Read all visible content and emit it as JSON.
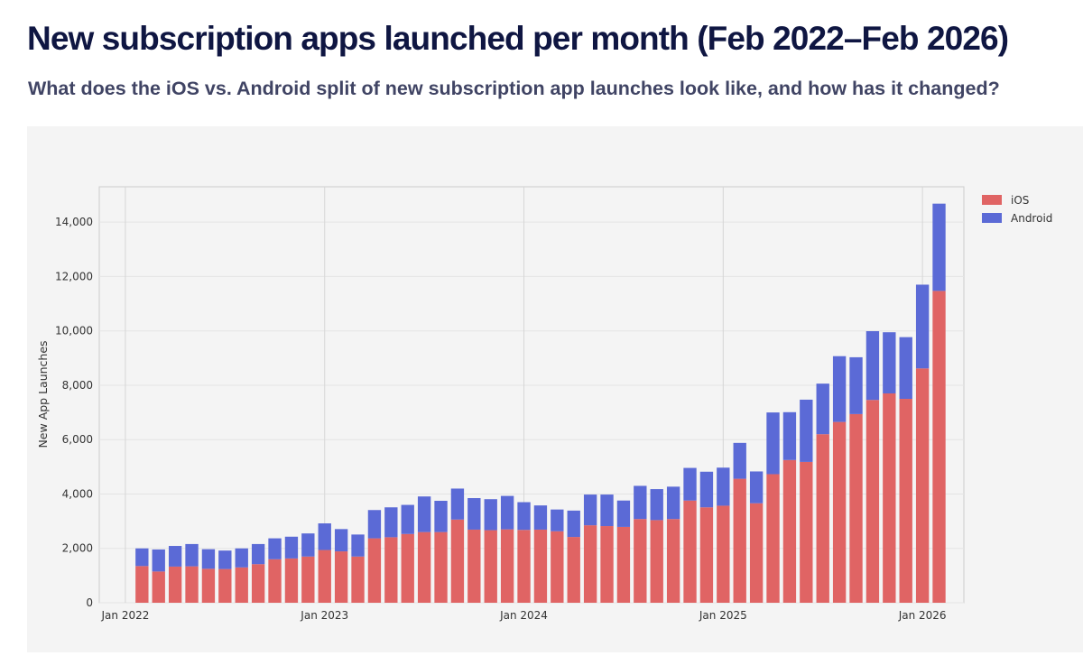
{
  "header": {
    "title": "New subscription apps launched per month (Feb 2022–Feb 2026)",
    "subtitle": "What does the iOS vs. Android split of new subscription app launches look like, and how has it changed?"
  },
  "chart_data": {
    "type": "bar",
    "stacked": true,
    "title": "",
    "xlabel": "",
    "ylabel": "New App Launches",
    "ylim": [
      0,
      15300
    ],
    "yticks": [
      0,
      2000,
      4000,
      6000,
      8000,
      10000,
      12000,
      14000
    ],
    "ytick_labels": [
      "0",
      "2,000",
      "4,000",
      "6,000",
      "8,000",
      "10,000",
      "12,000",
      "14,000"
    ],
    "xticks": [
      "2022-01",
      "2023-01",
      "2024-01",
      "2025-01",
      "2026-01"
    ],
    "xtick_labels": [
      "Jan 2022",
      "Jan 2023",
      "Jan 2024",
      "Jan 2025",
      "Jan 2026"
    ],
    "xlim": [
      "2021-11-14",
      "2026-03-16"
    ],
    "grid": true,
    "legend_position": "right",
    "categories": [
      "2022-02",
      "2022-03",
      "2022-04",
      "2022-05",
      "2022-06",
      "2022-07",
      "2022-08",
      "2022-09",
      "2022-10",
      "2022-11",
      "2022-12",
      "2023-01",
      "2023-02",
      "2023-03",
      "2023-04",
      "2023-05",
      "2023-06",
      "2023-07",
      "2023-08",
      "2023-09",
      "2023-10",
      "2023-11",
      "2023-12",
      "2024-01",
      "2024-02",
      "2024-03",
      "2024-04",
      "2024-05",
      "2024-06",
      "2024-07",
      "2024-08",
      "2024-09",
      "2024-10",
      "2024-11",
      "2024-12",
      "2025-01",
      "2025-02",
      "2025-03",
      "2025-04",
      "2025-05",
      "2025-06",
      "2025-07",
      "2025-08",
      "2025-09",
      "2025-10",
      "2025-11",
      "2025-12",
      "2026-01",
      "2026-02"
    ],
    "series": [
      {
        "name": "iOS",
        "color": "#e06464",
        "values": [
          1350,
          1150,
          1330,
          1340,
          1250,
          1240,
          1300,
          1420,
          1600,
          1630,
          1700,
          1940,
          1890,
          1700,
          2370,
          2410,
          2530,
          2600,
          2600,
          3060,
          2690,
          2670,
          2700,
          2680,
          2690,
          2630,
          2420,
          2850,
          2820,
          2790,
          3080,
          3040,
          3080,
          3760,
          3510,
          3570,
          4560,
          3660,
          4730,
          5250,
          5180,
          6200,
          6650,
          6940,
          7460,
          7700,
          7500,
          8620,
          11470
        ]
      },
      {
        "name": "Android",
        "color": "#5b6ad6",
        "values": [
          650,
          810,
          760,
          820,
          720,
          680,
          700,
          740,
          770,
          800,
          850,
          980,
          820,
          810,
          1040,
          1100,
          1070,
          1310,
          1150,
          1140,
          1160,
          1140,
          1230,
          1020,
          890,
          800,
          970,
          1130,
          1160,
          970,
          1220,
          1140,
          1190,
          1200,
          1310,
          1400,
          1320,
          1170,
          2270,
          1760,
          2290,
          1860,
          2420,
          2090,
          2530,
          2250,
          2270,
          3080,
          3210
        ]
      }
    ]
  }
}
